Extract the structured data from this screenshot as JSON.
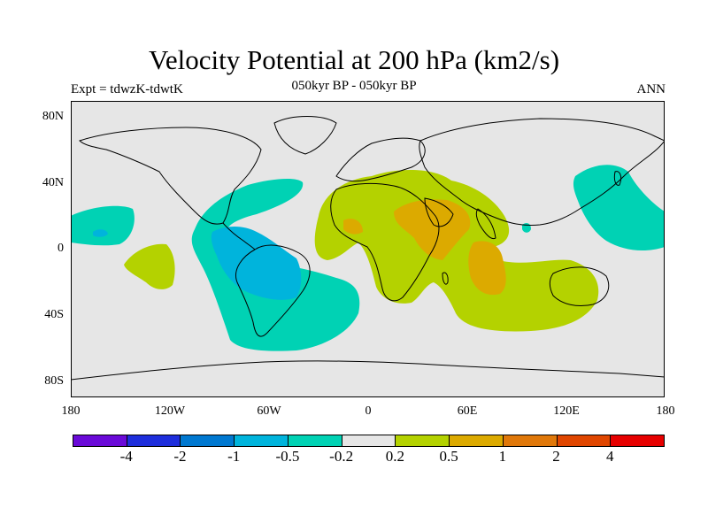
{
  "title": "Velocity Potential at 200 hPa (km2/s)",
  "subtitle": "050kyr BP - 050kyr BP",
  "left_label": "Expt = tdwzK-tdwtK",
  "right_label": "ANN",
  "axes": {
    "y_ticks": [
      "80N",
      "40N",
      "0",
      "40S",
      "80S"
    ],
    "x_ticks": [
      "180",
      "120W",
      "60W",
      "0",
      "60E",
      "120E",
      "180"
    ]
  },
  "colorbar": {
    "colors": [
      "#6a0ad8",
      "#1e2edc",
      "#0078d0",
      "#00b4dc",
      "#00d2b4",
      "#e6e6e6",
      "#b4d200",
      "#dcaa00",
      "#e0780a",
      "#e04600",
      "#e60000"
    ],
    "labels": [
      "-4",
      "-2",
      "-1",
      "-0.5",
      "-0.2",
      "0.2",
      "0.5",
      "1",
      "2",
      "4"
    ]
  },
  "map_colors": {
    "background": "#e6e6e6",
    "neg_light": "#00d2b4",
    "neg_mid": "#00b4dc",
    "pos_light": "#b4d200",
    "pos_mid": "#dcaa00"
  }
}
